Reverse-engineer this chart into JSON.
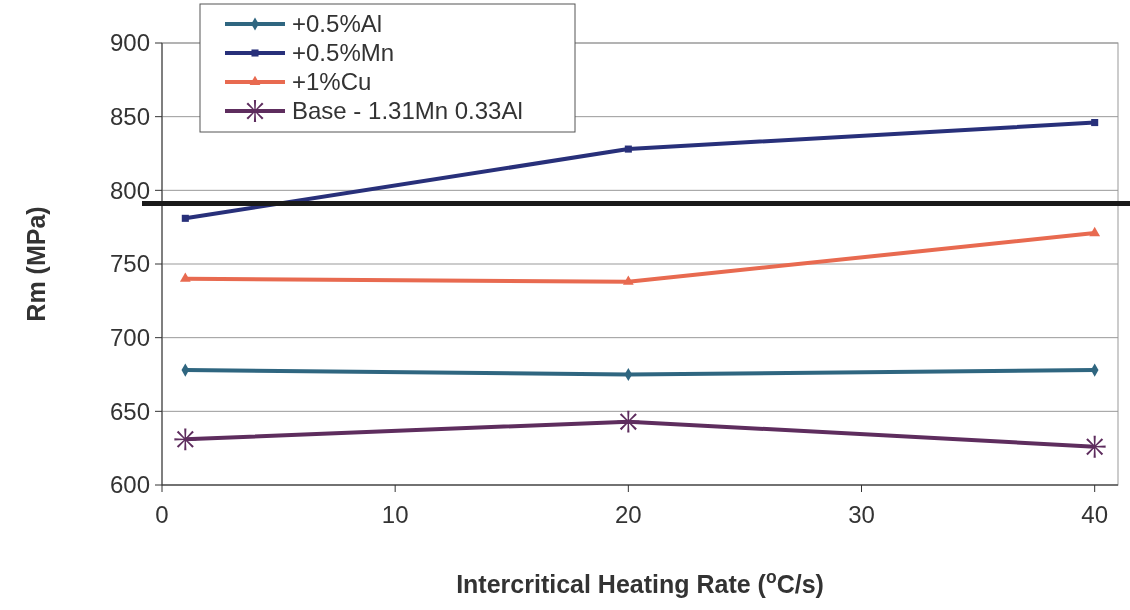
{
  "chart_data": {
    "type": "line",
    "xlabel": "Intercritical Heating Rate ($^{o}$C/s)",
    "ylabel": "Rm (MPa)",
    "x": [
      1,
      20,
      40
    ],
    "xlim": [
      0,
      41
    ],
    "xticks": [
      0,
      10,
      20,
      30,
      40
    ],
    "ylim": [
      600,
      900
    ],
    "yticks": [
      600,
      650,
      700,
      750,
      800,
      850,
      900
    ],
    "grid": "y",
    "legend": "top left",
    "series": [
      {
        "name": "+0.5%Al",
        "color": "#2f6680",
        "marker": "diamond",
        "values": [
          678,
          675,
          678
        ]
      },
      {
        "name": "+0.5%Mn",
        "color": "#28307a",
        "marker": "square",
        "values": [
          781,
          828,
          846
        ]
      },
      {
        "name": "+1%Cu",
        "color": "#e86a50",
        "marker": "triangle",
        "values": [
          740,
          738,
          771
        ]
      },
      {
        "name": "Base - 1.31Mn 0.33Al",
        "color": "#5e2d5e",
        "marker": "cross",
        "values": [
          631,
          643,
          626
        ]
      }
    ],
    "ref_lines": [
      {
        "axis": "y",
        "value": 791,
        "color": "#1a1a1a",
        "line_style": "solid"
      }
    ]
  }
}
